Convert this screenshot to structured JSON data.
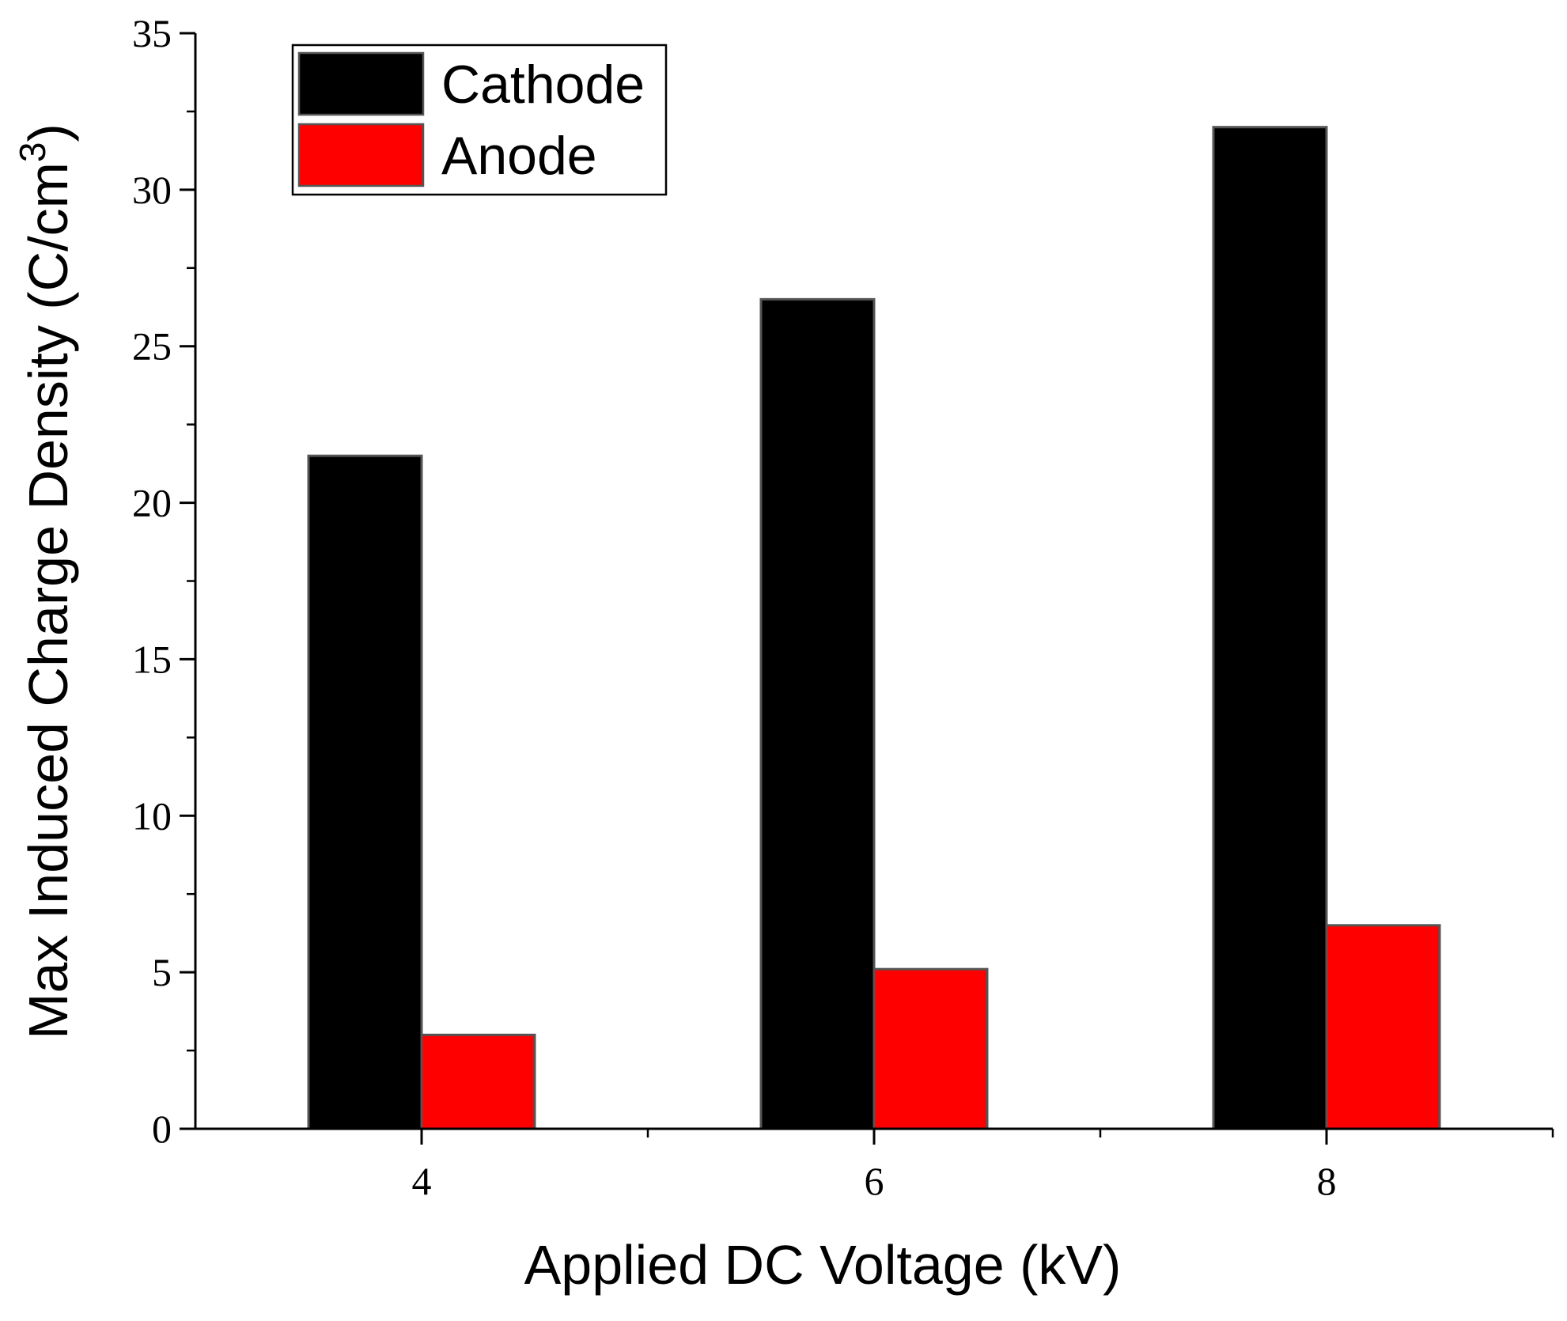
{
  "chart_data": {
    "type": "bar",
    "title": "",
    "xlabel": "Applied DC Voltage (kV)",
    "ylabel": "Max Induced Charge Density (C/cm3)",
    "ylabel_main": "Max Induced Charge Density (C/cm",
    "ylabel_sup": "3",
    "ylabel_tail": ")",
    "categories": [
      "4",
      "6",
      "8"
    ],
    "series": [
      {
        "name": "Cathode",
        "color": "#000000",
        "values": [
          21.5,
          26.5,
          32
        ]
      },
      {
        "name": "Anode",
        "color": "#ff0000",
        "values": [
          3,
          5.1,
          6.5
        ]
      }
    ],
    "ylim": [
      0,
      35
    ],
    "yticks": [
      "0",
      "5",
      "10",
      "15",
      "20",
      "25",
      "30",
      "35"
    ],
    "grid": false,
    "legend_position": "top-left"
  }
}
